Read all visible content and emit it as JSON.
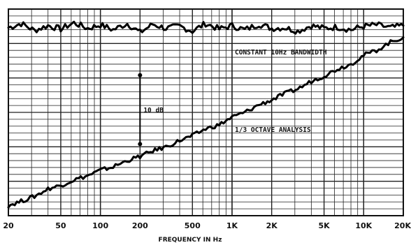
{
  "chart_data": {
    "type": "line",
    "title": "",
    "xlabel": "FREQUENCY IN Hz",
    "ylabel": "",
    "x_scale": "log",
    "xlim": [
      20,
      20000
    ],
    "x_ticks": [
      {
        "value": 20,
        "label": "20"
      },
      {
        "value": 50,
        "label": "50"
      },
      {
        "value": 100,
        "label": "100"
      },
      {
        "value": 200,
        "label": "200"
      },
      {
        "value": 500,
        "label": "500"
      },
      {
        "value": 1000,
        "label": "1K"
      },
      {
        "value": 2000,
        "label": "2K"
      },
      {
        "value": 5000,
        "label": "5K"
      },
      {
        "value": 10000,
        "label": "10K"
      },
      {
        "value": 20000,
        "label": "20K"
      }
    ],
    "ylim": [
      0,
      30
    ],
    "y_units": "dB (relative)",
    "grid": true,
    "annotations": [
      {
        "text": "CONSTANT 10Hz BANDWIDTH",
        "refers_to": "constant_10hz_bandwidth"
      },
      {
        "text": "1/3 OCTAVE ANALYSIS",
        "refers_to": "third_octave_analysis"
      },
      {
        "text": "10 dB",
        "x": 200,
        "y_from": 10.4,
        "y_to": 20.4
      }
    ],
    "series": [
      {
        "key": "constant_10hz_bandwidth",
        "x": [
          20,
          25,
          31.5,
          40,
          50,
          63,
          80,
          100,
          125,
          160,
          200,
          250,
          315,
          400,
          500,
          630,
          800,
          1000,
          1250,
          1600,
          2000,
          2500,
          3150,
          4000,
          5000,
          6300,
          8000,
          10000,
          12500,
          16000,
          20000
        ],
        "y": [
          27.3,
          27.9,
          26.9,
          27.6,
          27.1,
          28.0,
          27.2,
          27.7,
          27.0,
          27.9,
          26.6,
          27.8,
          27.2,
          27.5,
          26.8,
          27.9,
          27.1,
          27.6,
          27.0,
          27.8,
          27.2,
          27.3,
          26.8,
          27.6,
          27.2,
          27.4,
          27.0,
          27.5,
          27.7,
          27.3,
          27.6
        ]
      },
      {
        "key": "third_octave_analysis",
        "x": [
          20,
          25,
          31.5,
          40,
          50,
          63,
          80,
          100,
          125,
          160,
          200,
          250,
          315,
          400,
          500,
          630,
          800,
          1000,
          1250,
          1600,
          2000,
          2500,
          3150,
          4000,
          5000,
          6300,
          8000,
          10000,
          12500,
          16000,
          20000
        ],
        "y": [
          1.5,
          2.1,
          2.8,
          3.9,
          4.4,
          5.2,
          5.8,
          6.6,
          7.1,
          8.0,
          8.6,
          9.4,
          10.0,
          10.9,
          11.6,
          12.6,
          13.2,
          14.3,
          15.0,
          16.1,
          16.8,
          17.7,
          18.4,
          19.5,
          20.3,
          21.3,
          22.0,
          23.3,
          24.0,
          25.2,
          25.9
        ]
      }
    ]
  }
}
